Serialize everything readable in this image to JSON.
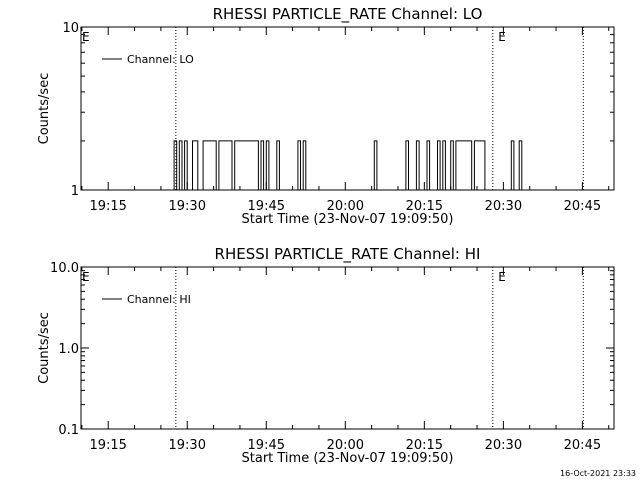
{
  "chart_data": [
    {
      "type": "line",
      "title": "RHESSI PARTICLE_RATE Channel: LO",
      "xlabel": "Start Time (23-Nov-07 19:09:50)",
      "ylabel": "Counts/sec",
      "y_scale": "log",
      "ylim": [
        1,
        10
      ],
      "y_ticks": [
        1,
        10
      ],
      "y_tick_labels": [
        "1",
        "10"
      ],
      "xlim": [
        "19:09:50",
        "20:51:00"
      ],
      "x_ticks": [
        "19:15",
        "19:30",
        "19:45",
        "20:00",
        "20:15",
        "20:30",
        "20:45"
      ],
      "grid": false,
      "legend": {
        "position": "top-left",
        "label": "Channel: LO"
      },
      "eclipse_flags": [
        {
          "label": "E",
          "time": "19:09:50"
        },
        {
          "label": "E",
          "time": "20:28:50"
        }
      ],
      "vertical_markers": [
        "19:27:50",
        "20:28:00",
        "20:45:10"
      ],
      "series": [
        {
          "name": "Channel: LO",
          "x": [
            "19:27:00",
            "19:27:30",
            "19:28:00",
            "19:28:30",
            "19:29:00",
            "19:29:30",
            "19:30:00",
            "19:30:30",
            "19:31:00",
            "19:31:30",
            "19:32:00",
            "19:32:30",
            "19:33:00",
            "19:33:30",
            "19:34:00",
            "19:34:30",
            "19:35:00",
            "19:35:30",
            "19:36:00",
            "19:37:00",
            "19:38:00",
            "19:38:30",
            "19:39:00",
            "19:39:30",
            "19:40:00",
            "19:40:30",
            "19:41:00",
            "19:42:00",
            "19:43:00",
            "19:43:30",
            "19:44:00",
            "19:44:30",
            "19:45:00",
            "19:45:30",
            "19:46:00",
            "19:46:30",
            "19:47:00",
            "19:47:30",
            "19:48:00",
            "19:48:30",
            "19:49:00",
            "19:49:30",
            "19:50:00",
            "19:50:30",
            "19:51:00",
            "19:51:30",
            "19:52:00",
            "19:52:30",
            "19:53:00",
            "20:05:00",
            "20:05:30",
            "20:06:00",
            "20:11:00",
            "20:11:30",
            "20:12:00",
            "20:13:00",
            "20:13:30",
            "20:14:00",
            "20:15:00",
            "20:15:30",
            "20:16:00",
            "20:17:00",
            "20:17:30",
            "20:18:00",
            "20:18:30",
            "20:19:00",
            "20:19:30",
            "20:20:00",
            "20:20:30",
            "20:21:00",
            "20:24:00",
            "20:24:30",
            "20:25:00",
            "20:25:30",
            "20:26:00",
            "20:26:30",
            "20:27:00",
            "20:31:00",
            "20:31:30",
            "20:32:00",
            "20:32:30",
            "20:33:00",
            "20:33:30",
            "20:34:00"
          ],
          "y": [
            1,
            2,
            1,
            2,
            1,
            2,
            1,
            1,
            2,
            2,
            1,
            1,
            2,
            2,
            2,
            2,
            2,
            1,
            2,
            2,
            2,
            1,
            2,
            2,
            2,
            2,
            2,
            2,
            2,
            1,
            2,
            1,
            2,
            1,
            1,
            1,
            2,
            1,
            1,
            1,
            1,
            1,
            1,
            1,
            2,
            1,
            2,
            1,
            1,
            1,
            2,
            1,
            1,
            2,
            1,
            1,
            2,
            1,
            1,
            2,
            1,
            1,
            2,
            1,
            2,
            1,
            1,
            2,
            1,
            2,
            1,
            2,
            2,
            2,
            2,
            1,
            1,
            1,
            2,
            1,
            1,
            2,
            1,
            1
          ]
        }
      ]
    },
    {
      "type": "line",
      "title": "RHESSI PARTICLE_RATE Channel: HI",
      "xlabel": "Start Time (23-Nov-07 19:09:50)",
      "ylabel": "Counts/sec",
      "y_scale": "log",
      "ylim": [
        0.1,
        10
      ],
      "y_ticks": [
        0.1,
        1,
        10
      ],
      "y_tick_labels": [
        "0.1",
        "1.0",
        "10.0"
      ],
      "xlim": [
        "19:09:50",
        "20:51:00"
      ],
      "x_ticks": [
        "19:15",
        "19:30",
        "19:45",
        "20:00",
        "20:15",
        "20:30",
        "20:45"
      ],
      "grid": false,
      "legend": {
        "position": "top-left",
        "label": "Channel: HI"
      },
      "eclipse_flags": [
        {
          "label": "E",
          "time": "19:09:50"
        },
        {
          "label": "E",
          "time": "20:28:50"
        }
      ],
      "vertical_markers": [
        "19:27:50",
        "20:28:00",
        "20:45:10"
      ],
      "series": [
        {
          "name": "Channel: HI",
          "x": [],
          "y": []
        }
      ]
    }
  ],
  "timestamp": "16-Oct-2021 23:33"
}
